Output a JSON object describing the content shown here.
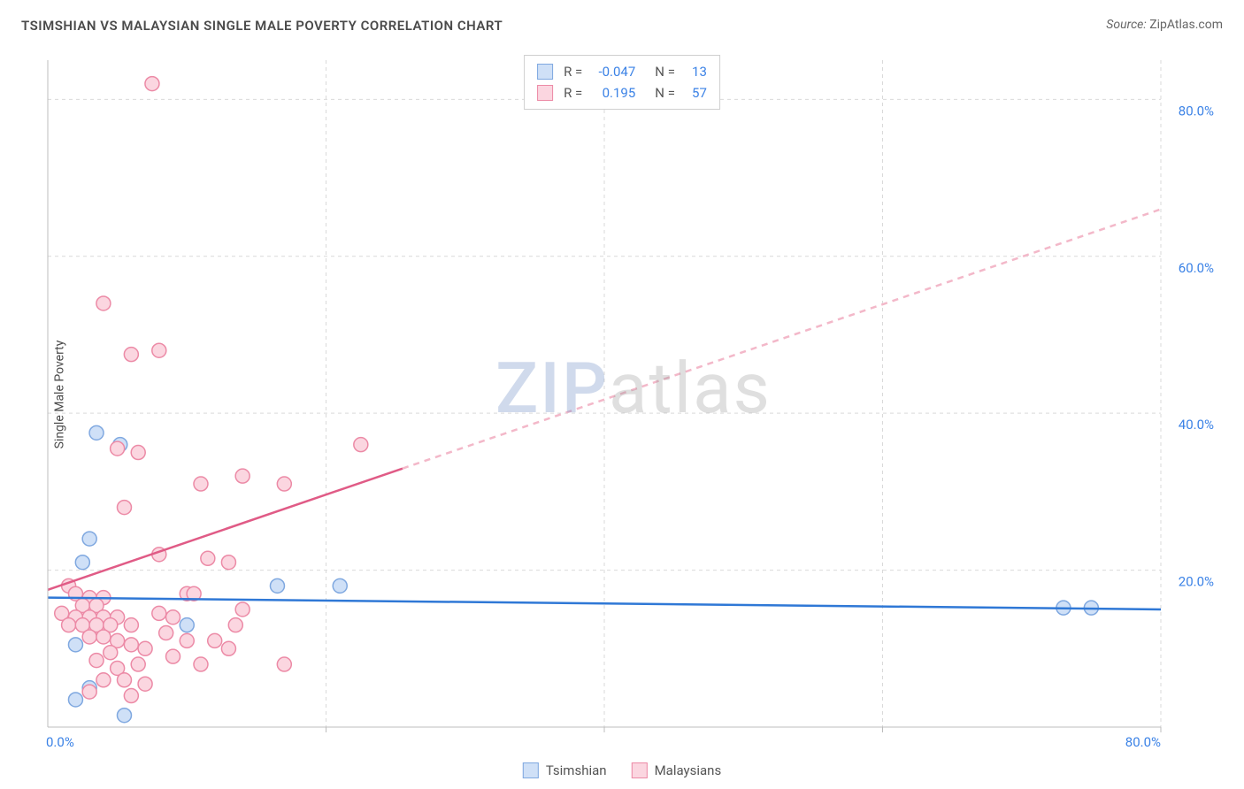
{
  "title": "TSIMSHIAN VS MALAYSIAN SINGLE MALE POVERTY CORRELATION CHART",
  "source_label": "Source:",
  "source_value": "ZipAtlas.com",
  "ylabel": "Single Male Poverty",
  "watermark": {
    "a": "ZIP",
    "b": "atlas"
  },
  "chart": {
    "type": "scatter",
    "xlim": [
      0,
      80
    ],
    "ylim": [
      0,
      85
    ],
    "grid_vals": [
      20,
      40,
      60,
      80
    ],
    "ytick_labels": [
      "20.0%",
      "40.0%",
      "60.0%",
      "80.0%"
    ],
    "x_start_label": "0.0%",
    "x_end_label": "80.0%",
    "grid_color": "#d9d9d9",
    "axis_color": "#bcbcbc",
    "background_color": "#ffffff",
    "tick_font_color": "#3b82e6",
    "marker_radius": 8,
    "marker_stroke_width": 1.5,
    "series": [
      {
        "name": "Tsimshian",
        "fill": "#cfe0f7",
        "stroke": "#7fa8e0",
        "R": "-0.047",
        "N": "13",
        "trend": {
          "y_at_x0": 16.5,
          "y_at_x80": 15.0,
          "solid_until_x": 80,
          "solid_color": "#2f78d6",
          "dash_color": "#9fc0ea",
          "width": 2.5
        },
        "points": [
          [
            3.5,
            37.5
          ],
          [
            5.2,
            36
          ],
          [
            3,
            24
          ],
          [
            2.5,
            21
          ],
          [
            2,
            10.5
          ],
          [
            3,
            5
          ],
          [
            2,
            3.5
          ],
          [
            10,
            13
          ],
          [
            16.5,
            18
          ],
          [
            21,
            18
          ],
          [
            73,
            15.2
          ],
          [
            75,
            15.2
          ],
          [
            5.5,
            1.5
          ]
        ]
      },
      {
        "name": "Malaysians",
        "fill": "#fbd6e0",
        "stroke": "#ec8aa6",
        "R": "0.195",
        "N": "57",
        "trend": {
          "y_at_x0": 17.5,
          "y_at_x80": 66,
          "solid_until_x": 25.5,
          "solid_color": "#e05b86",
          "dash_color": "#f3b8c9",
          "width": 2.5
        },
        "points": [
          [
            7.5,
            82
          ],
          [
            4,
            54
          ],
          [
            6,
            47.5
          ],
          [
            8,
            48
          ],
          [
            5,
            35.5
          ],
          [
            6.5,
            35
          ],
          [
            22.5,
            36
          ],
          [
            5.5,
            28
          ],
          [
            11,
            31
          ],
          [
            14,
            32
          ],
          [
            17,
            31
          ],
          [
            8,
            22
          ],
          [
            11.5,
            21.5
          ],
          [
            13,
            21
          ],
          [
            1.5,
            18
          ],
          [
            2,
            17
          ],
          [
            3,
            16.5
          ],
          [
            4,
            16.5
          ],
          [
            2.5,
            15.5
          ],
          [
            3.5,
            15.5
          ],
          [
            1,
            14.5
          ],
          [
            2,
            14
          ],
          [
            3,
            14
          ],
          [
            4,
            14
          ],
          [
            5,
            14
          ],
          [
            1.5,
            13
          ],
          [
            2.5,
            13
          ],
          [
            3.5,
            13
          ],
          [
            4.5,
            13
          ],
          [
            6,
            13
          ],
          [
            8,
            14.5
          ],
          [
            9,
            14
          ],
          [
            10,
            17
          ],
          [
            3,
            11.5
          ],
          [
            4,
            11.5
          ],
          [
            5,
            11
          ],
          [
            6,
            10.5
          ],
          [
            4.5,
            9.5
          ],
          [
            7,
            10
          ],
          [
            8.5,
            12
          ],
          [
            3.5,
            8.5
          ],
          [
            5,
            7.5
          ],
          [
            6.5,
            8
          ],
          [
            10,
            11
          ],
          [
            12,
            11
          ],
          [
            13.5,
            13
          ],
          [
            4,
            6
          ],
          [
            5.5,
            6
          ],
          [
            7,
            5.5
          ],
          [
            3,
            4.5
          ],
          [
            6,
            4
          ],
          [
            9,
            9
          ],
          [
            11,
            8
          ],
          [
            17,
            8
          ],
          [
            10.5,
            17
          ],
          [
            14,
            15
          ],
          [
            13,
            10
          ]
        ]
      }
    ],
    "stats_labels": {
      "R": "R  =",
      "N": "N  ="
    }
  }
}
